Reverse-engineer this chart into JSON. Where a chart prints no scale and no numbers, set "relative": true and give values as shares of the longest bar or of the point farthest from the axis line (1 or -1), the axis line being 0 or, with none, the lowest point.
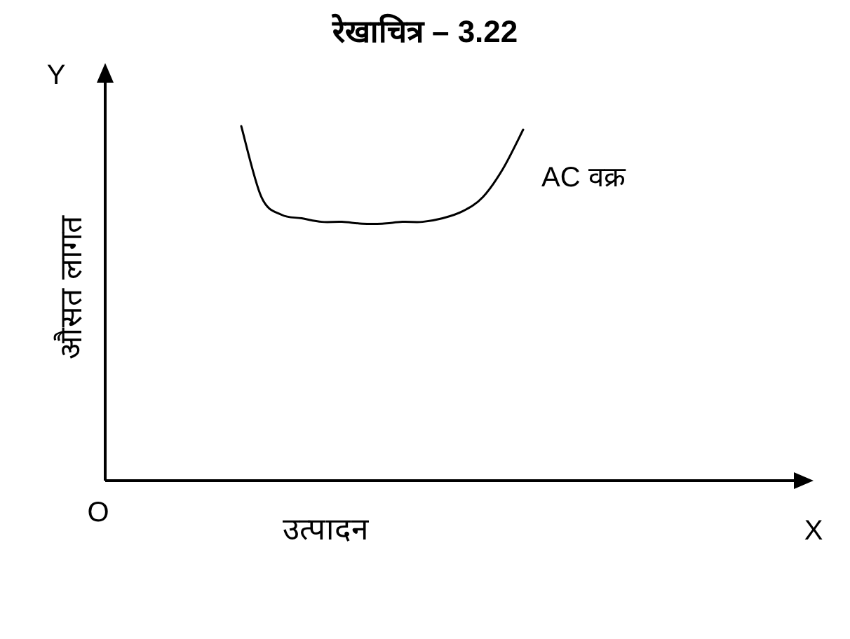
{
  "chart_data": {
    "type": "line",
    "title": "रेखाचित्र – 3.22",
    "xlabel": "उत्पादन",
    "ylabel": "औसत लागत",
    "relative": true,
    "marker": "none",
    "line_style": "solid",
    "categories": [
      null,
      null,
      null,
      null,
      null,
      null,
      null,
      null,
      null,
      null,
      null,
      null,
      null,
      null,
      null
    ],
    "series": [
      {
        "color": "#000000",
        "values": [
          1,
          0.8,
          0.75,
          0.74,
          0.73,
          0.73,
          0.725,
          0.725,
          0.73,
          0.73,
          0.74,
          0.76,
          0.8,
          0.88,
          0.99
        ]
      }
    ],
    "annotations": [
      "AC वक्र",
      "Y",
      "X",
      "O"
    ]
  }
}
